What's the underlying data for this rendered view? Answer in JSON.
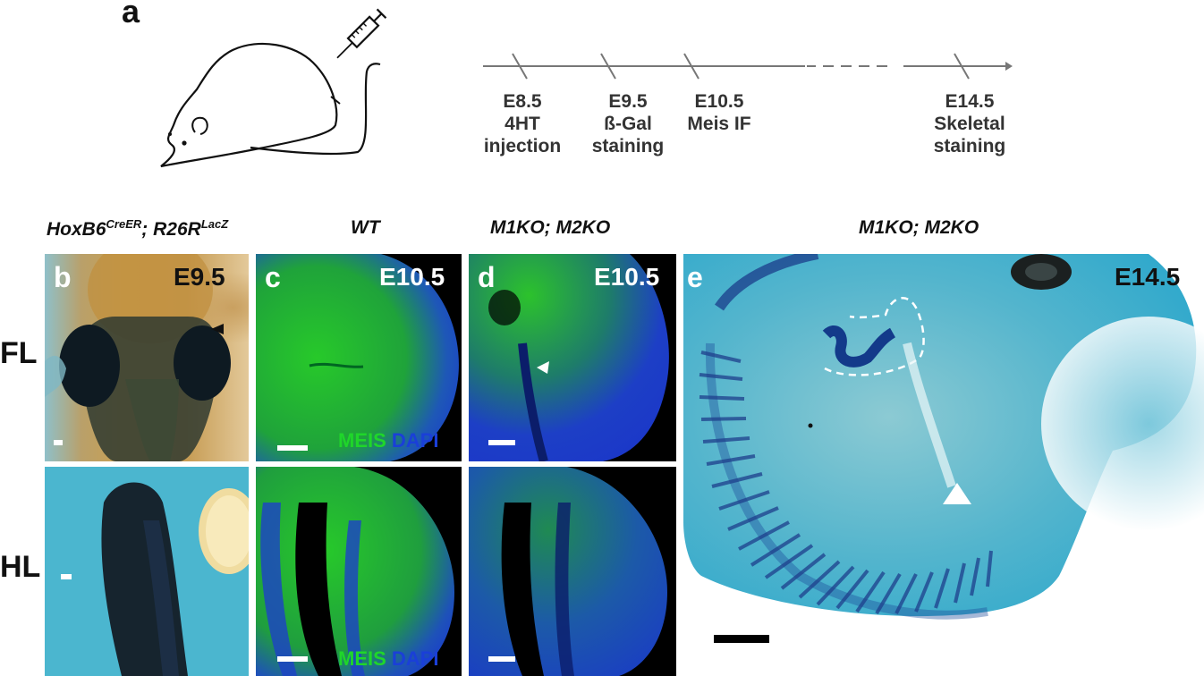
{
  "panel_a": {
    "letter": "a",
    "timeline": [
      {
        "stage": "E8.5",
        "line1": "4HT",
        "line2": "injection"
      },
      {
        "stage": "E9.5",
        "line1": "ß-Gal",
        "line2": "staining"
      },
      {
        "stage": "E10.5",
        "line1": "Meis IF",
        "line2": ""
      },
      {
        "stage": "E14.5",
        "line1": "Skeletal",
        "line2": "staining"
      }
    ]
  },
  "headers": {
    "b": {
      "gene1": "HoxB6",
      "sup1": "CreER",
      "sep": "; ",
      "gene2": "R26R",
      "sup2": "LacZ"
    },
    "c": "WT",
    "d": "M1KO; M2KO",
    "e": "M1KO; M2KO"
  },
  "row_labels": {
    "top": "FL",
    "bottom": "HL"
  },
  "panels": {
    "b": {
      "letter": "b",
      "stage": "E9.5"
    },
    "c": {
      "letter": "c",
      "stage": "E10.5",
      "stain1": "MEIS",
      "stain2": "DAPI"
    },
    "d": {
      "letter": "d",
      "stage": "E10.5"
    },
    "e": {
      "letter": "e",
      "stage": "E14.5"
    }
  },
  "colors": {
    "meis_green": "#1fd62a",
    "dapi_blue": "#1a3fd8",
    "alcian_blue": "#3fb5cf",
    "background": "#ffffff"
  }
}
